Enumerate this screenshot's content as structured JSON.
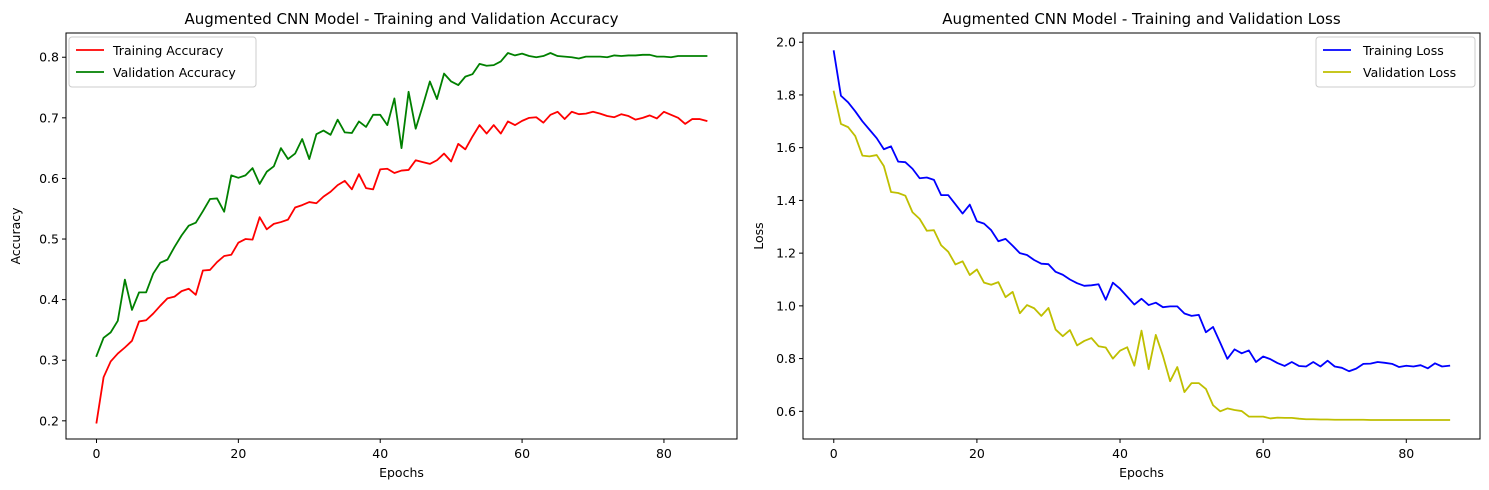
{
  "chart_data": [
    {
      "type": "line",
      "title": "Augmented CNN Model - Training and Validation Accuracy",
      "xlabel": "Epochs",
      "ylabel": "Accuracy",
      "xlim": [
        -4.3,
        90.3
      ],
      "ylim": [
        0.17,
        0.84
      ],
      "xticks": [
        0,
        20,
        40,
        60,
        80
      ],
      "yticks": [
        0.2,
        0.3,
        0.4,
        0.5,
        0.6,
        0.7,
        0.8
      ],
      "grid": false,
      "legend_position": "top-left",
      "series": [
        {
          "name": "Training Accuracy",
          "color": "#ff0000",
          "values": [
            0.197,
            0.272,
            0.298,
            0.311,
            0.321,
            0.332,
            0.364,
            0.366,
            0.377,
            0.39,
            0.402,
            0.405,
            0.414,
            0.418,
            0.408,
            0.448,
            0.449,
            0.462,
            0.472,
            0.474,
            0.494,
            0.5,
            0.499,
            0.536,
            0.516,
            0.525,
            0.528,
            0.532,
            0.552,
            0.556,
            0.561,
            0.559,
            0.57,
            0.578,
            0.589,
            0.596,
            0.582,
            0.607,
            0.584,
            0.582,
            0.615,
            0.616,
            0.609,
            0.613,
            0.614,
            0.63,
            0.627,
            0.624,
            0.63,
            0.641,
            0.628,
            0.657,
            0.648,
            0.669,
            0.688,
            0.674,
            0.688,
            0.674,
            0.694,
            0.688,
            0.695,
            0.7,
            0.701,
            0.692,
            0.705,
            0.71,
            0.698,
            0.71,
            0.706,
            0.707,
            0.71,
            0.707,
            0.703,
            0.701,
            0.706,
            0.703,
            0.697,
            0.7,
            0.704,
            0.699,
            0.71,
            0.705,
            0.7,
            0.69,
            0.698,
            0.698,
            0.695
          ]
        },
        {
          "name": "Validation Accuracy",
          "color": "#008000",
          "values": [
            0.307,
            0.337,
            0.346,
            0.365,
            0.433,
            0.383,
            0.412,
            0.412,
            0.443,
            0.461,
            0.466,
            0.487,
            0.506,
            0.522,
            0.527,
            0.546,
            0.566,
            0.567,
            0.545,
            0.605,
            0.601,
            0.605,
            0.617,
            0.591,
            0.611,
            0.62,
            0.65,
            0.632,
            0.641,
            0.665,
            0.632,
            0.673,
            0.679,
            0.672,
            0.697,
            0.676,
            0.675,
            0.694,
            0.685,
            0.705,
            0.705,
            0.688,
            0.732,
            0.65,
            0.743,
            0.682,
            0.72,
            0.76,
            0.731,
            0.773,
            0.76,
            0.754,
            0.768,
            0.772,
            0.789,
            0.786,
            0.787,
            0.793,
            0.807,
            0.803,
            0.806,
            0.802,
            0.8,
            0.802,
            0.807,
            0.802,
            0.801,
            0.8,
            0.798,
            0.801,
            0.801,
            0.801,
            0.8,
            0.803,
            0.802,
            0.803,
            0.803,
            0.804,
            0.804,
            0.801,
            0.801,
            0.8,
            0.802,
            0.802,
            0.802,
            0.802,
            0.802
          ]
        }
      ]
    },
    {
      "type": "line",
      "title": "Augmented CNN Model - Training and Validation Loss",
      "xlabel": "Epochs",
      "ylabel": "Loss",
      "xlim": [
        -4.3,
        90.3
      ],
      "ylim": [
        0.495,
        2.035
      ],
      "xticks": [
        0,
        20,
        40,
        60,
        80
      ],
      "yticks": [
        0.6,
        0.8,
        1.0,
        1.2,
        1.4,
        1.6,
        1.8,
        2.0
      ],
      "ytick_labels": [
        "0.6",
        "0.8",
        "1.0",
        "1.2",
        "1.4",
        "1.6",
        "1.8",
        "2.0"
      ],
      "grid": false,
      "legend_position": "top-right",
      "series": [
        {
          "name": "Training Loss",
          "color": "#0000ff",
          "values": [
            1.966,
            1.797,
            1.772,
            1.738,
            1.7,
            1.668,
            1.636,
            1.594,
            1.605,
            1.547,
            1.545,
            1.52,
            1.484,
            1.487,
            1.478,
            1.42,
            1.42,
            1.385,
            1.35,
            1.384,
            1.321,
            1.312,
            1.287,
            1.245,
            1.254,
            1.228,
            1.2,
            1.193,
            1.174,
            1.16,
            1.158,
            1.129,
            1.118,
            1.1,
            1.086,
            1.076,
            1.078,
            1.082,
            1.023,
            1.088,
            1.065,
            1.035,
            1.005,
            1.027,
            1.003,
            1.012,
            0.995,
            0.998,
            0.998,
            0.971,
            0.962,
            0.966,
            0.9,
            0.92,
            0.86,
            0.799,
            0.835,
            0.82,
            0.831,
            0.787,
            0.808,
            0.798,
            0.783,
            0.772,
            0.787,
            0.772,
            0.77,
            0.787,
            0.77,
            0.792,
            0.77,
            0.765,
            0.752,
            0.762,
            0.78,
            0.781,
            0.787,
            0.784,
            0.78,
            0.768,
            0.773,
            0.77,
            0.775,
            0.763,
            0.782,
            0.77,
            0.773
          ]
        },
        {
          "name": "Validation Loss",
          "color": "#bfbf00",
          "values": [
            1.813,
            1.69,
            1.678,
            1.644,
            1.57,
            1.567,
            1.572,
            1.53,
            1.432,
            1.428,
            1.418,
            1.355,
            1.33,
            1.285,
            1.287,
            1.23,
            1.205,
            1.157,
            1.169,
            1.117,
            1.138,
            1.088,
            1.08,
            1.09,
            1.033,
            1.053,
            0.972,
            1.003,
            0.991,
            0.962,
            0.992,
            0.91,
            0.885,
            0.908,
            0.85,
            0.867,
            0.878,
            0.847,
            0.842,
            0.8,
            0.83,
            0.843,
            0.773,
            0.906,
            0.76,
            0.89,
            0.81,
            0.714,
            0.768,
            0.673,
            0.707,
            0.707,
            0.685,
            0.623,
            0.6,
            0.611,
            0.605,
            0.601,
            0.58,
            0.58,
            0.58,
            0.573,
            0.576,
            0.575,
            0.575,
            0.572,
            0.57,
            0.57,
            0.569,
            0.569,
            0.568,
            0.568,
            0.568,
            0.568,
            0.568,
            0.567,
            0.567,
            0.567,
            0.567,
            0.567,
            0.567,
            0.567,
            0.567,
            0.567,
            0.567,
            0.567,
            0.567
          ]
        }
      ]
    }
  ]
}
